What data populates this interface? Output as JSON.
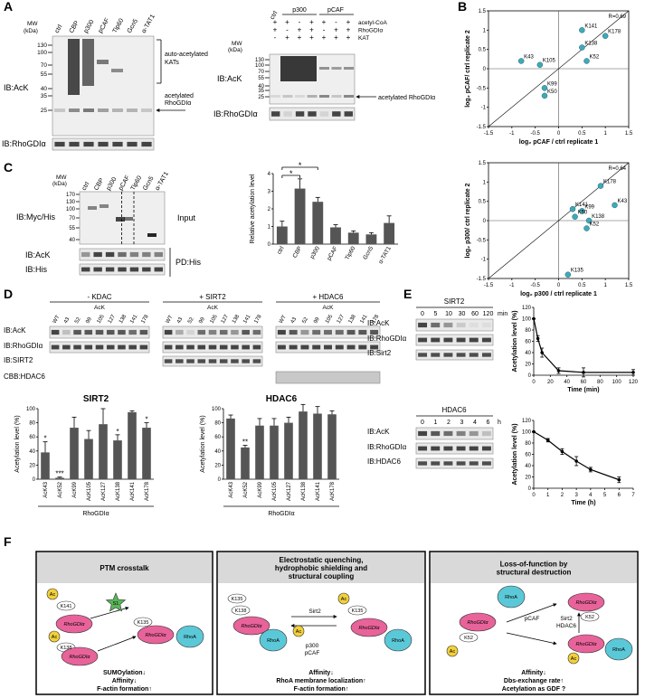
{
  "panel_labels": [
    "A",
    "B",
    "C",
    "D",
    "E",
    "F"
  ],
  "panel_A": {
    "left": {
      "lanes": [
        "ctrl",
        "CBP",
        "p300",
        "pCAF",
        "Tip60",
        "Gcn5",
        "α-TAT1"
      ],
      "mw_header": [
        "MW",
        "(kDa)"
      ],
      "mw": [
        130,
        100,
        70,
        55,
        40,
        35,
        25
      ],
      "rows": [
        "IB:AcK",
        "IB:RhoGDIα"
      ],
      "annotations": [
        [
          "auto-acetylated",
          "KATs"
        ],
        [
          "acetylated",
          "RhoGDIα"
        ]
      ]
    },
    "right": {
      "ctrl": "ctrl",
      "groups": [
        "p300",
        "pCAF"
      ],
      "conditions": [
        "acetyl-CoA",
        "RhoGDIα",
        "KAT"
      ],
      "signs": [
        [
          "+",
          "+",
          "-",
          "+",
          "+",
          "-",
          "+"
        ],
        [
          "+",
          "-",
          "+",
          "+",
          "-",
          "+",
          "+"
        ],
        [
          "-",
          "+",
          "+",
          "+",
          "+",
          "+",
          "+"
        ]
      ],
      "mw_header": [
        "MW",
        "(kDa)"
      ],
      "mw": [
        130,
        100,
        70,
        55,
        40,
        35,
        25
      ],
      "rows": [
        "IB:AcK",
        "IB:RhoGDIα"
      ],
      "annotation": "acetylated RhoGDIα"
    }
  },
  "panel_C": {
    "lanes": [
      "ctrl",
      "CBP",
      "p300",
      "pCAF",
      "Tip60",
      "Gcn5",
      "α-TAT1"
    ],
    "mw_header": [
      "MW",
      "(kDa)"
    ],
    "mw": [
      170,
      130,
      100,
      70,
      55,
      40
    ],
    "rows": [
      "IB:Myc/His",
      "IB:AcK",
      "IB:His"
    ],
    "side_labels": [
      "Input",
      "PD:His"
    ]
  },
  "panel_D": {
    "groups": [
      "- KDAC",
      "+ SIRT2",
      "+ HDAC6"
    ],
    "sublabel": "AcK",
    "lanes": [
      "WT",
      "43",
      "52",
      "99",
      "105",
      "127",
      "138",
      "141",
      "178"
    ],
    "rows": [
      "IB:AcK",
      "IB:RhoGDIα",
      "IB:SIRT2",
      "CBB:HDAC6"
    ]
  },
  "panel_E": {
    "blots": [
      {
        "title": "SIRT2",
        "times": [
          0,
          5,
          10,
          30,
          60,
          120
        ],
        "unit": "min",
        "rows": [
          "IB:AcK",
          "IB:RhoGDIα",
          "IB:Sirt2"
        ]
      },
      {
        "title": "HDAC6",
        "times": [
          0,
          1,
          2,
          3,
          4,
          6
        ],
        "unit": "h",
        "rows": [
          "IB:AcK",
          "IB:RhoGDIα",
          "IB:HDAC6"
        ]
      }
    ]
  },
  "panel_F": {
    "boxes": [
      {
        "title": [
          "PTM crosstalk"
        ],
        "labels": [
          "Ac",
          "K141",
          "RhoGDIα",
          "S1",
          "K135",
          "RhoGDIα",
          "RhoA",
          "Ac",
          "K138",
          "RhoGDIα"
        ],
        "effects": [
          "SUMOylation↓",
          "Affinity↓",
          "F-actin formation↑"
        ]
      },
      {
        "title": [
          "Electrostatic quenching,",
          "hydrophobic shielding and",
          "structural coupling"
        ],
        "labels": [
          "K135",
          "K138",
          "RhoGDIα",
          "RhoA",
          "Sirt2",
          "p300",
          "pCAF",
          "Ac",
          "Ac",
          "K135",
          "RhoGDIα",
          "RhoA"
        ],
        "effects": [
          "Affinity↓",
          "RhoA membrane localization↑",
          "F-actin formation↑"
        ]
      },
      {
        "title": [
          "Loss-of-function by",
          "structural destruction"
        ],
        "labels": [
          "RhoA",
          "RhoGDIα",
          "K52",
          "Ac",
          "pCAF",
          "Sirt2",
          "HDAC6",
          "RhoGDIα",
          "K52",
          "RhoGDIα",
          "Ac",
          "RhoA"
        ],
        "effects": [
          "Affinity↓",
          "Dbs-exchange rate↑",
          "Acetylation as GDF ?"
        ]
      }
    ]
  },
  "chart_data": [
    {
      "type": "scatter",
      "annotation": "R=0.69",
      "xlabel": "log₂ pCAF / ctrl replicate 1",
      "ylabel": "log₂ pCAF/ ctrl replicate 2",
      "labels": [
        "K141",
        "K178",
        "K138",
        "K43",
        "K105",
        "K99",
        "K50",
        "K52"
      ],
      "x": [
        0.5,
        1.0,
        0.5,
        -0.8,
        -0.4,
        -0.3,
        -0.3,
        0.6
      ],
      "values": [
        1.0,
        0.85,
        0.55,
        0.2,
        0.1,
        -0.5,
        -0.7,
        0.2
      ],
      "xlim": [
        -1.5,
        1.5
      ],
      "ylim": [
        -1.5,
        1.5
      ],
      "xticks": [
        -1.5,
        -1,
        -0.5,
        0,
        0.5,
        1,
        1.5
      ],
      "yticks": [
        -1.5,
        -1,
        -0.5,
        0,
        0.5,
        1,
        1.5
      ],
      "color": "#40a9b8",
      "diagonal": true
    },
    {
      "type": "scatter",
      "annotation": "R=0.64",
      "xlabel": "log₂ p300 / ctrl replicate 1",
      "ylabel": "log₂ p300/ ctrl replicate 2",
      "labels": [
        "K178",
        "K141",
        "K99",
        "K50",
        "K43",
        "K138",
        "K52",
        "K135"
      ],
      "x": [
        0.9,
        0.3,
        0.5,
        0.35,
        1.2,
        0.65,
        0.6,
        0.2
      ],
      "values": [
        0.9,
        0.3,
        0.25,
        0.1,
        0.4,
        0.0,
        -0.2,
        -1.4
      ],
      "xlim": [
        -1.5,
        1.5
      ],
      "ylim": [
        -1.5,
        1.5
      ],
      "xticks": [
        -1.5,
        -1,
        -0.5,
        0,
        0.5,
        1,
        1.5
      ],
      "yticks": [
        -1.5,
        -1,
        -0.5,
        0,
        0.5,
        1,
        1.5
      ],
      "color": "#40a9b8",
      "diagonal": true
    },
    {
      "type": "bar",
      "ylabel": "Relative acetylation level",
      "categories": [
        "ctrl",
        "CBP",
        "p300",
        "pCAF",
        "Tip60",
        "Gcn5",
        "α-TAT1"
      ],
      "values": [
        1.0,
        3.15,
        2.4,
        0.95,
        0.65,
        0.55,
        1.2
      ],
      "errors": [
        0.3,
        0.55,
        0.25,
        0.15,
        0.1,
        0.1,
        0.4
      ],
      "annotations": [
        "*",
        "*"
      ],
      "ylim": [
        0,
        4
      ],
      "yticks": [
        0,
        1,
        2,
        3,
        4
      ],
      "color": "#555555"
    },
    {
      "type": "bar",
      "title": "SIRT2",
      "ylabel": "Acetylation level (%)",
      "xlabel": "RhoGDIα",
      "categories": [
        "AcK43",
        "AcK52",
        "AcK99",
        "AcK105",
        "AcK127",
        "AcK138",
        "AcK141",
        "AcK178"
      ],
      "values": [
        38,
        2,
        73,
        57,
        78,
        55,
        95,
        73
      ],
      "errors": [
        15,
        1,
        15,
        12,
        22,
        8,
        2,
        7
      ],
      "significance": [
        "*",
        "***",
        null,
        null,
        null,
        "*",
        null,
        "*"
      ],
      "ylim": [
        0,
        100
      ],
      "yticks": [
        0,
        20,
        40,
        60,
        80,
        100
      ],
      "color": "#555555"
    },
    {
      "type": "bar",
      "title": "HDAC6",
      "ylabel": "Acetylation level (%)",
      "xlabel": "RhoGDIα",
      "categories": [
        "AcK43",
        "AcK52",
        "AcK99",
        "AcK105",
        "AcK127",
        "AcK138",
        "AcK141",
        "AcK178"
      ],
      "values": [
        86,
        45,
        76,
        76,
        80,
        96,
        93,
        92
      ],
      "errors": [
        5,
        3,
        10,
        10,
        8,
        10,
        10,
        5
      ],
      "significance": [
        null,
        "**",
        null,
        null,
        null,
        null,
        null,
        null
      ],
      "ylim": [
        0,
        100
      ],
      "yticks": [
        0,
        20,
        40,
        60,
        80,
        100
      ],
      "color": "#555555"
    },
    {
      "type": "line",
      "xlabel": "Time (min)",
      "ylabel": "Acetylation level (%)",
      "x": [
        0,
        5,
        10,
        30,
        60,
        120
      ],
      "values": [
        100,
        65,
        40,
        8,
        5,
        5
      ],
      "errors": [
        0,
        5,
        8,
        5,
        8,
        5
      ],
      "xlim": [
        0,
        120
      ],
      "xticks": [
        0,
        20,
        40,
        60,
        80,
        100,
        120
      ],
      "ylim": [
        0,
        120
      ],
      "yticks": [
        0,
        20,
        40,
        60,
        80,
        100,
        120
      ],
      "color": "#000000"
    },
    {
      "type": "line",
      "xlabel": "Time (h)",
      "ylabel": "Acetylation level (%)",
      "x": [
        0,
        1,
        2,
        3,
        4,
        6
      ],
      "values": [
        100,
        85,
        65,
        48,
        33,
        15
      ],
      "errors": [
        0,
        3,
        5,
        8,
        4,
        5
      ],
      "xlim": [
        0,
        7
      ],
      "xticks": [
        0,
        1,
        2,
        3,
        4,
        5,
        6,
        7
      ],
      "ylim": [
        0,
        120
      ],
      "yticks": [
        0,
        20,
        40,
        60,
        80,
        100,
        120
      ],
      "color": "#000000"
    }
  ]
}
